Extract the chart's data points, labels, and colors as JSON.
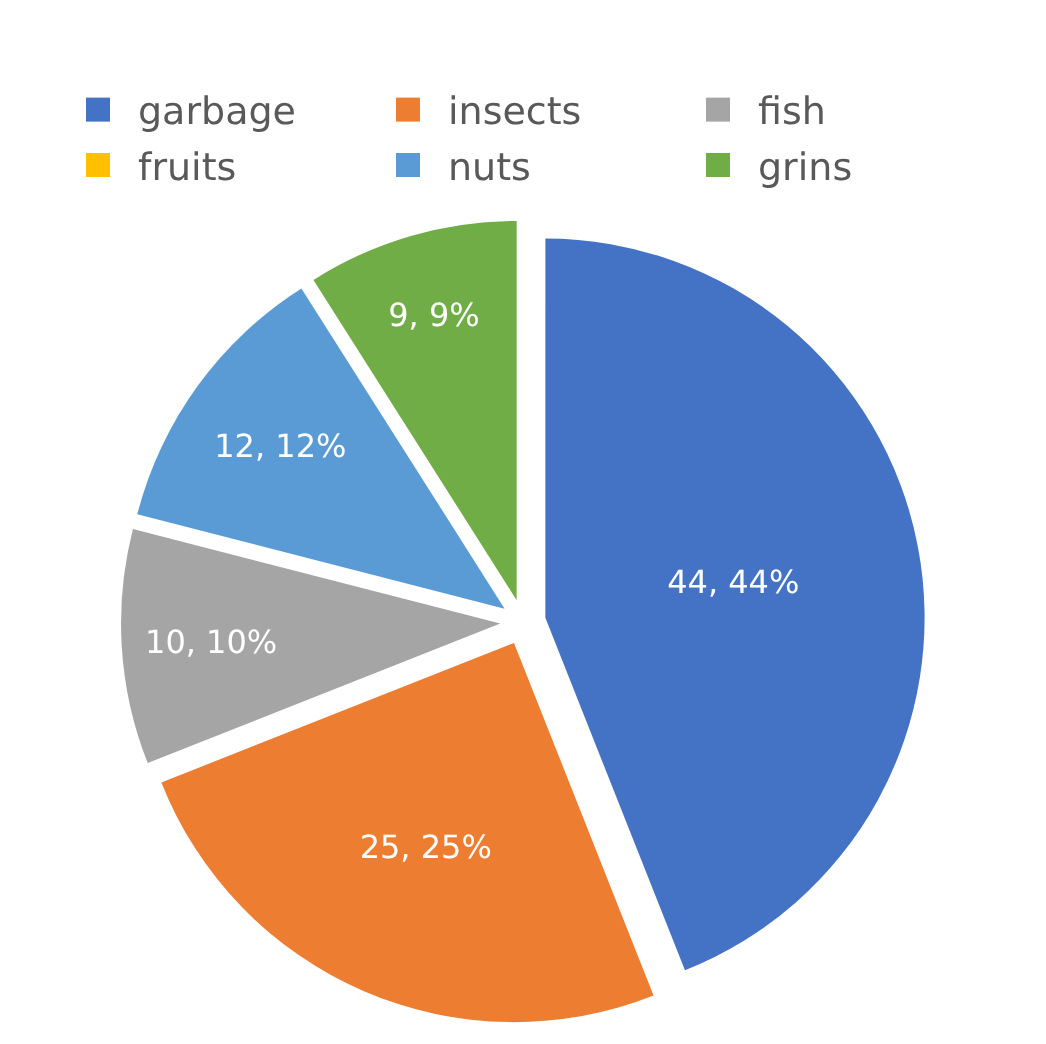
{
  "chart_data": {
    "type": "pie",
    "categories": [
      "garbage",
      "insects",
      "fish",
      "fruits",
      "nuts",
      "grins"
    ],
    "values": [
      44,
      25,
      10,
      0,
      12,
      9
    ],
    "colors": [
      "#4472c4",
      "#ed7d31",
      "#a5a5a5",
      "#ffc000",
      "#5b9bd5",
      "#70ad47"
    ],
    "value_labels": [
      "44, 44%",
      "25, 25%",
      "10, 10%",
      null,
      "12, 12%",
      "9, 9%"
    ],
    "legend": "top"
  }
}
